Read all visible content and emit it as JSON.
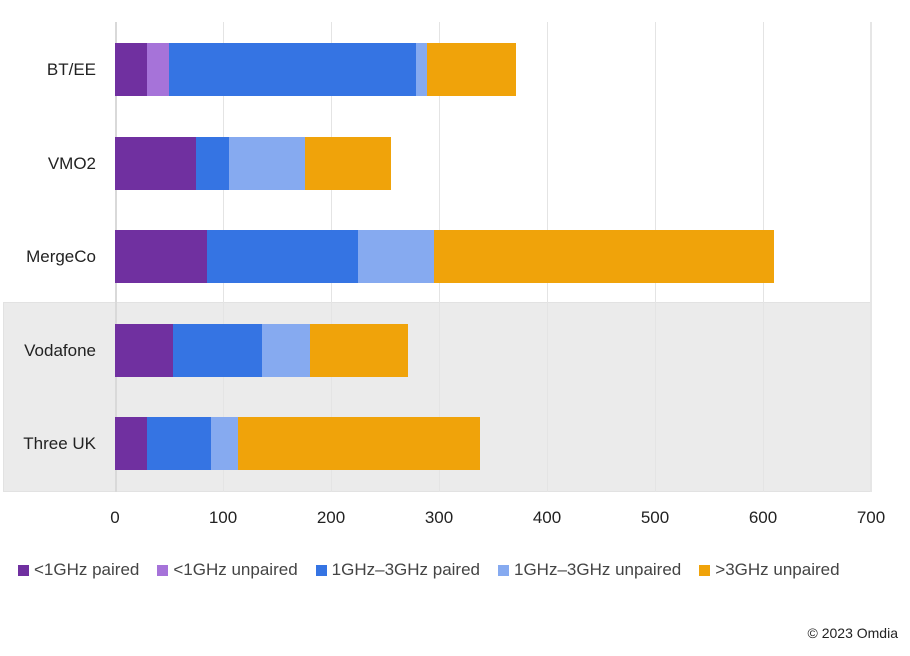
{
  "chart_data": {
    "type": "bar",
    "orientation": "horizontal",
    "stacked": true,
    "title": "",
    "xlabel": "",
    "ylabel": "",
    "xlim": [
      0,
      700
    ],
    "x_ticks": [
      0,
      100,
      200,
      300,
      400,
      500,
      600,
      700
    ],
    "grid": true,
    "legend_position": "bottom",
    "categories": [
      "BT/EE",
      "VMO2",
      "MergeCo",
      "Vodafone",
      "Three UK"
    ],
    "series": [
      {
        "name": "<1GHz paired",
        "color": "#7030A0",
        "values": [
          30,
          75,
          85,
          54,
          30
        ]
      },
      {
        "name": "<1GHz unpaired",
        "color": "#A673D9",
        "values": [
          20,
          0,
          0,
          0,
          0
        ]
      },
      {
        "name": "1GHz–3GHz paired",
        "color": "#3574E3",
        "values": [
          229,
          31,
          140,
          82,
          59
        ]
      },
      {
        "name": "1GHz–3GHz unpaired",
        "color": "#86AAF0",
        "values": [
          10,
          70,
          70,
          45,
          25
        ]
      },
      {
        "name": ">3GHz unpaired",
        "color": "#F0A30A",
        "values": [
          82,
          80,
          315,
          90,
          224
        ]
      }
    ],
    "totals": [
      371,
      256,
      610,
      271,
      338
    ],
    "highlighted_categories": [
      "Vodafone",
      "Three UK"
    ],
    "annotations": [
      "© 2023 Omdia"
    ]
  },
  "axis": {
    "tick_labels": [
      "0",
      "100",
      "200",
      "300",
      "400",
      "500",
      "600",
      "700"
    ]
  },
  "legend": [
    {
      "label": "<1GHz paired",
      "color": "#7030A0"
    },
    {
      "label": "<1GHz unpaired",
      "color": "#A673D9"
    },
    {
      "label": "1GHz–3GHz paired",
      "color": "#3574E3"
    },
    {
      "label": "1GHz–3GHz unpaired",
      "color": "#86AAF0"
    },
    {
      "label": ">3GHz unpaired",
      "color": "#F0A30A"
    }
  ],
  "credit": "© 2023 Omdia",
  "highlight_color": "#EBEBEB"
}
